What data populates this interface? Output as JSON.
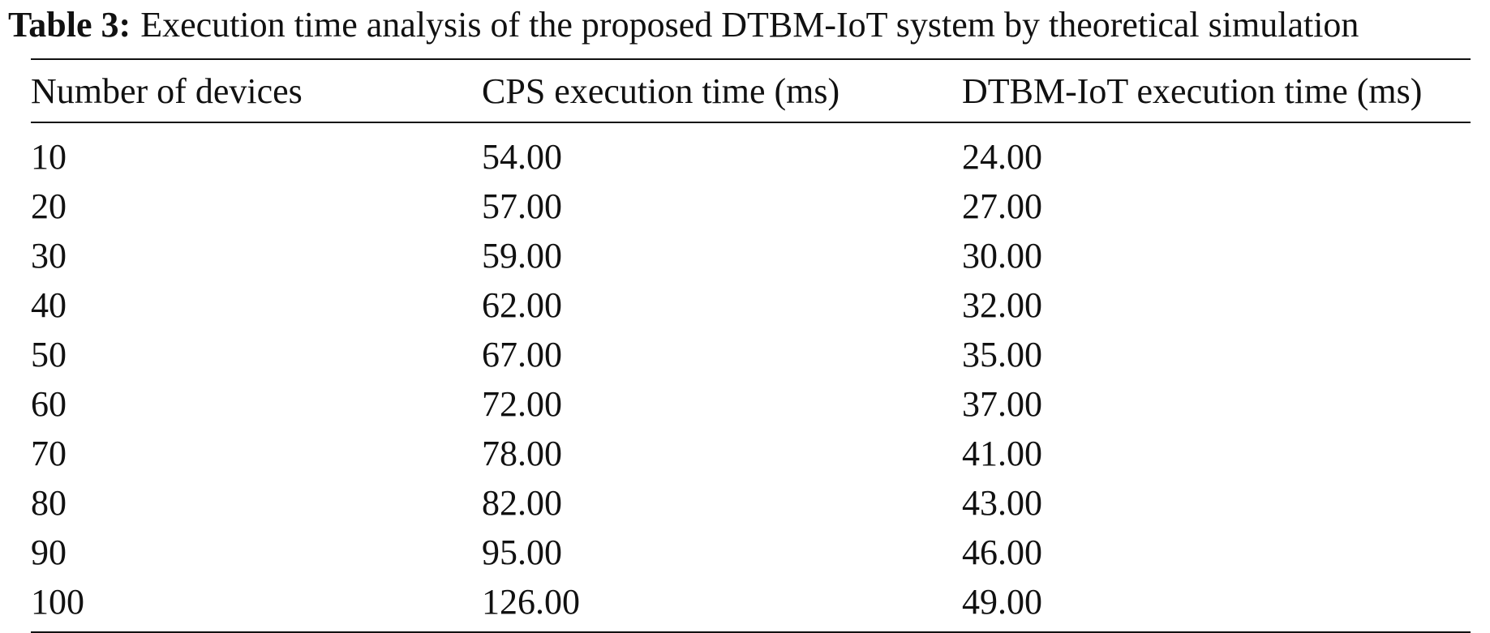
{
  "caption": {
    "label": "Table 3:",
    "text": "Execution time analysis of the proposed DTBM-IoT system by theoretical simulation"
  },
  "table": {
    "headers": [
      "Number of devices",
      "CPS execution time (ms)",
      "DTBM-IoT execution time (ms)"
    ],
    "rows": [
      [
        "10",
        "54.00",
        "24.00"
      ],
      [
        "20",
        "57.00",
        "27.00"
      ],
      [
        "30",
        "59.00",
        "30.00"
      ],
      [
        "40",
        "62.00",
        "32.00"
      ],
      [
        "50",
        "67.00",
        "35.00"
      ],
      [
        "60",
        "72.00",
        "37.00"
      ],
      [
        "70",
        "78.00",
        "41.00"
      ],
      [
        "80",
        "82.00",
        "43.00"
      ],
      [
        "90",
        "95.00",
        "46.00"
      ],
      [
        "100",
        "126.00",
        "49.00"
      ]
    ]
  }
}
